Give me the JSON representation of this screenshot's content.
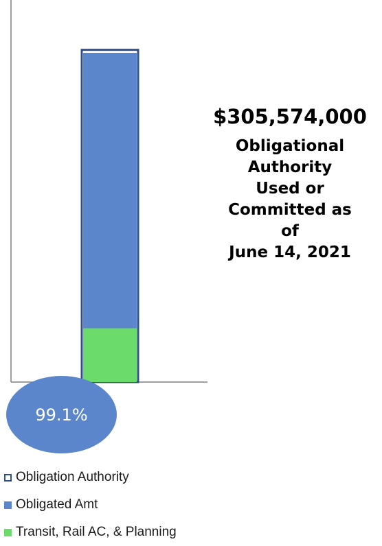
{
  "chart_data": {
    "type": "bar",
    "categories": [
      ""
    ],
    "series": [
      {
        "name": "Obligation Authority",
        "values": [
          100
        ]
      },
      {
        "name": "Obligated Amt",
        "values": [
          99.1
        ]
      },
      {
        "name": "Transit, Rail AC, & Planning",
        "values": [
          16.2
        ]
      }
    ],
    "ylim": [
      0,
      115
    ],
    "grid": false,
    "legend": "bottom-left",
    "colors": {
      "authority_outline": "#2f4e8c",
      "obligated": "#5b86cb",
      "transit": "#6bdc6b",
      "axis": "#7f7f7f"
    }
  },
  "headline": {
    "amount": "$305,574,000",
    "caption_lines": [
      "Obligational",
      "Authority",
      "Used or",
      "Committed as",
      "of",
      "June 14, 2021"
    ]
  },
  "percent_label": "99.1%",
  "legend": [
    {
      "label": "Obligation Authority",
      "swatch": "outline"
    },
    {
      "label": "Obligated Amt",
      "swatch": "obligated"
    },
    {
      "label": "Transit, Rail AC, & Planning",
      "swatch": "transit"
    }
  ]
}
